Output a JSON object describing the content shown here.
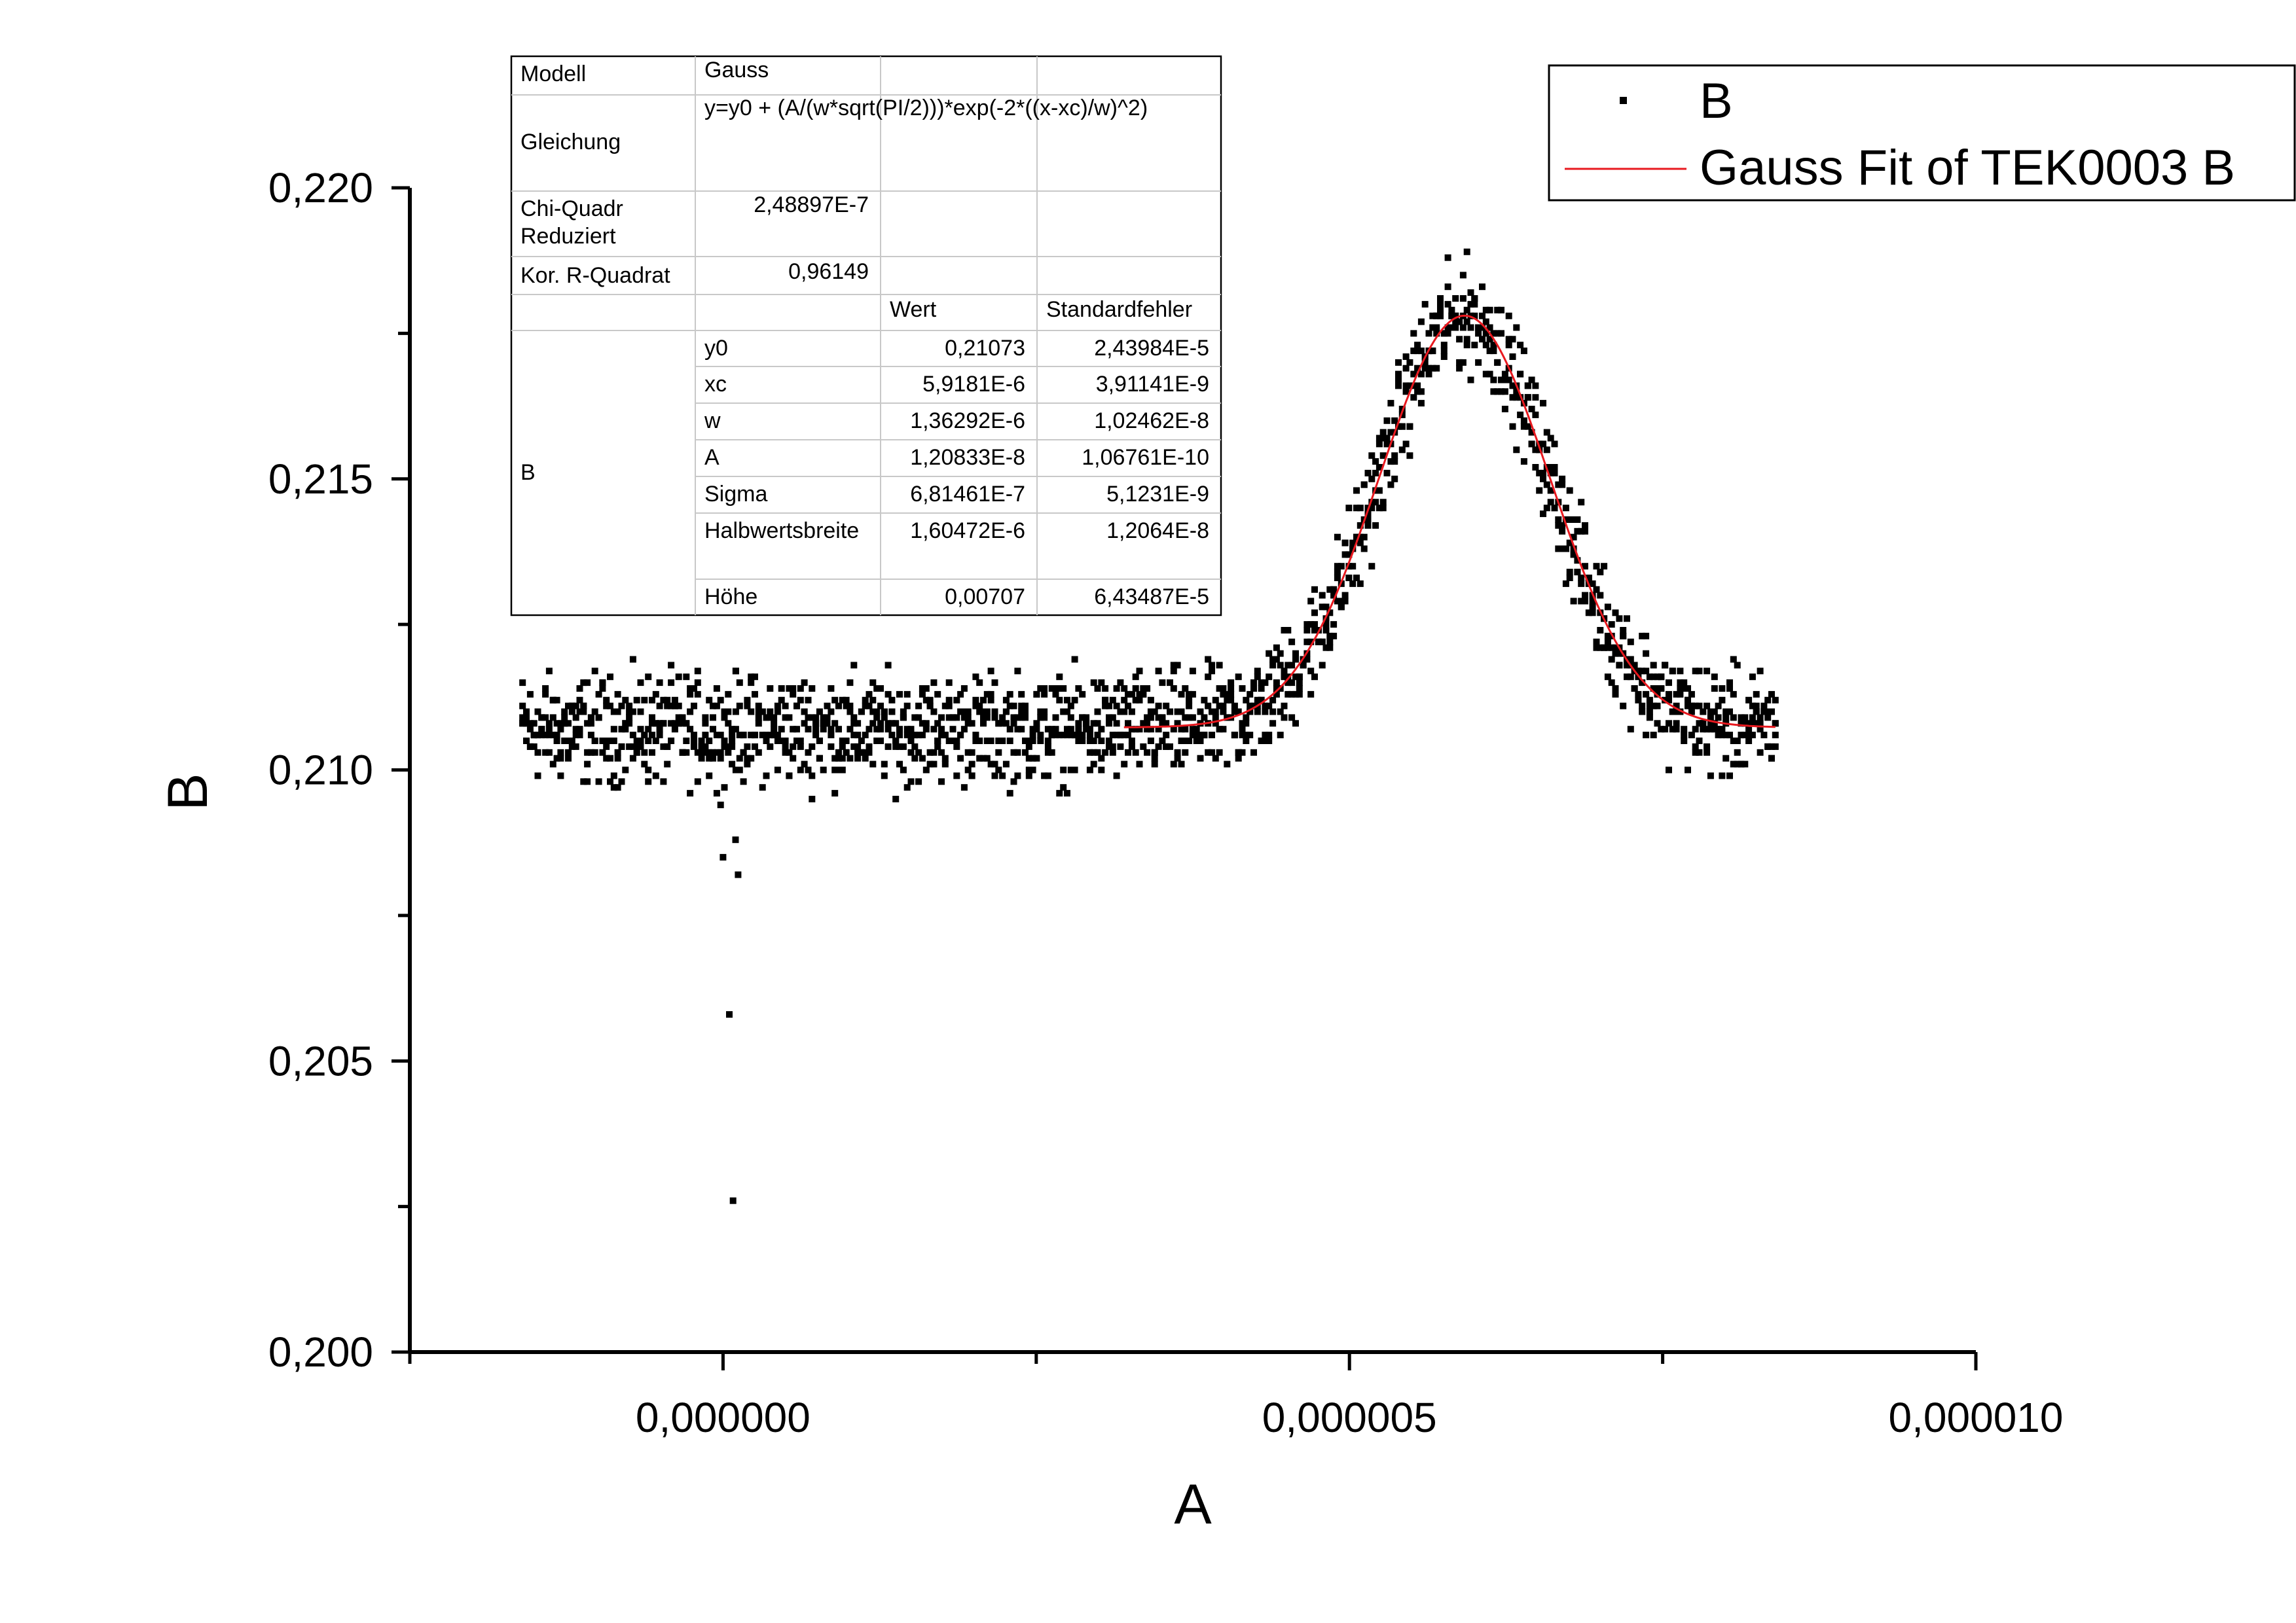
{
  "chart_data": {
    "type": "scatter",
    "title": "",
    "xlabel": "A",
    "ylabel": "B",
    "xlim": [
      -2.5e-06,
      1e-05
    ],
    "ylim": [
      0.2,
      0.22
    ],
    "x_tick_labels": [
      {
        "value": 0,
        "label": "0,000000"
      },
      {
        "value": 5e-06,
        "label": "0,000005"
      },
      {
        "value": 1e-05,
        "label": "0,000010"
      }
    ],
    "x_minor_ticks": [
      -2.5e-06,
      2.5e-06,
      7.5e-06
    ],
    "y_tick_labels": [
      {
        "value": 0.2,
        "label": "0,200"
      },
      {
        "value": 0.205,
        "label": "0,205"
      },
      {
        "value": 0.21,
        "label": "0,210"
      },
      {
        "value": 0.215,
        "label": "0,215"
      },
      {
        "value": 0.22,
        "label": "0,220"
      }
    ],
    "y_minor_ticks": [
      0.2025,
      0.2075,
      0.2125,
      0.2175
    ],
    "grid": false,
    "legend_position": "top-right",
    "series": [
      {
        "name": "B",
        "kind": "scatter",
        "color": "#000000",
        "x_range": [
          -1.6e-06,
          8.4e-06
        ],
        "baseline": 0.2107,
        "outliers": [
          {
            "x": 5e-08,
            "y": 0.2058
          },
          {
            "x": 8e-08,
            "y": 0.2026
          },
          {
            "x": 1.2e-07,
            "y": 0.2082
          },
          {
            "x": 0.0,
            "y": 0.2085
          },
          {
            "x": 1e-07,
            "y": 0.2088
          }
        ]
      },
      {
        "name": "Gauss Fit of TEK0003 B",
        "kind": "line",
        "color": "#e8191f",
        "x_range": [
          3.2e-06,
          8.4e-06
        ],
        "model": {
          "y0": 0.21073,
          "xc": 5.9181e-06,
          "w": 1.36292e-06,
          "A": 1.20833e-08
        }
      }
    ],
    "fit_table": {
      "rows": [
        {
          "c1": "Modell",
          "c2": "Gauss",
          "c3": "",
          "c4": ""
        },
        {
          "c1": "Gleichung",
          "c2": "y=y0 + (A/(w*sqrt(PI/2)))*exp(-2*((x-xc)/w)^2)",
          "c3": "",
          "c4": ""
        },
        {
          "c1": "Chi-Quadr Reduziert",
          "c2": "2,48897E-7",
          "c3": "",
          "c4": ""
        },
        {
          "c1": "Kor. R-Quadrat",
          "c2": "0,96149",
          "c3": "",
          "c4": ""
        },
        {
          "c1": "",
          "c2": "",
          "c3": "Wert",
          "c4": "Standardfehler"
        }
      ],
      "group_label": "B",
      "params": [
        {
          "name": "y0",
          "value": "0,21073",
          "error": "2,43984E-5"
        },
        {
          "name": "xc",
          "value": "5,9181E-6",
          "error": "3,91141E-9"
        },
        {
          "name": "w",
          "value": "1,36292E-6",
          "error": "1,02462E-8"
        },
        {
          "name": "A",
          "value": "1,20833E-8",
          "error": "1,06761E-10"
        },
        {
          "name": "Sigma",
          "value": "6,81461E-7",
          "error": "5,1231E-9"
        },
        {
          "name": "Halbwertsbreite",
          "value": "1,60472E-6",
          "error": "1,2064E-8"
        },
        {
          "name": "Höhe",
          "value": "0,00707",
          "error": "6,43487E-5"
        }
      ]
    }
  }
}
